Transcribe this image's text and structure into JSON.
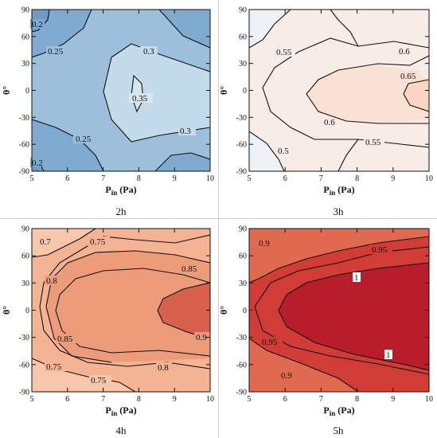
{
  "panels": [
    {
      "caption": "2h",
      "chart_data": {
        "type": "contour",
        "x": [
          5,
          6,
          7,
          8,
          9,
          10
        ],
        "y": [
          -90,
          -60,
          -30,
          0,
          30,
          60,
          90
        ],
        "xlabel_main": "P",
        "xlabel_sub": "in",
        "xlabel_unit": " (Pa)",
        "ylabel": "θ°",
        "xlim": [
          5,
          10
        ],
        "ylim": [
          -90,
          90
        ],
        "xticks": [
          "5",
          "6",
          "7",
          "8",
          "9",
          "10"
        ],
        "yticks": [
          "-90",
          "-60",
          "-30",
          "0",
          "30",
          "60",
          "90"
        ],
        "levels": [
          0.2,
          0.25,
          0.3,
          0.35
        ],
        "contour_labels": [
          "0.2",
          "0.25",
          "0.3",
          "0.35",
          "0.3",
          "0.25",
          "0.2"
        ],
        "color_low": "#7aa8cd",
        "color_high": "#d6e6f1"
      }
    },
    {
      "caption": "3h",
      "chart_data": {
        "type": "contour",
        "x": [
          5,
          6,
          7,
          8,
          9,
          10
        ],
        "y": [
          -90,
          -60,
          -30,
          0,
          30,
          60,
          90
        ],
        "xlabel_main": "P",
        "xlabel_sub": "in",
        "xlabel_unit": " (Pa)",
        "ylabel": "θ°",
        "xlim": [
          5,
          10
        ],
        "ylim": [
          -90,
          90
        ],
        "xticks": [
          "5",
          "6",
          "7",
          "8",
          "9",
          "10"
        ],
        "yticks": [
          "-90",
          "-60",
          "-30",
          "0",
          "30",
          "60",
          "90"
        ],
        "levels": [
          0.5,
          0.55,
          0.6,
          0.65
        ],
        "contour_labels": [
          "0.55",
          "0.6",
          "0.65",
          "0.6",
          "0.5",
          "0.55"
        ],
        "color_low": "#e9eef4",
        "color_high": "#f8dccd"
      }
    },
    {
      "caption": "4h",
      "chart_data": {
        "type": "contour",
        "x": [
          5,
          6,
          7,
          8,
          9,
          10
        ],
        "y": [
          -90,
          -60,
          -30,
          0,
          30,
          60,
          90
        ],
        "xlabel_main": "P",
        "xlabel_sub": "in",
        "xlabel_unit": " (Pa)",
        "ylabel": "θ°",
        "xlim": [
          5,
          10
        ],
        "ylim": [
          -90,
          90
        ],
        "xticks": [
          "5",
          "6",
          "7",
          "8",
          "9",
          "10"
        ],
        "yticks": [
          "-90",
          "-60",
          "-30",
          "0",
          "30",
          "60",
          "90"
        ],
        "levels": [
          0.7,
          0.75,
          0.8,
          0.85,
          0.9
        ],
        "contour_labels": [
          "0.7",
          "0.75",
          "0.8",
          "0.85",
          "0.85",
          "0.9",
          "0.75",
          "0.8",
          "0.75"
        ],
        "color_low": "#f4b99a",
        "color_high": "#d8584a"
      }
    },
    {
      "caption": "5h",
      "chart_data": {
        "type": "contour",
        "x": [
          5,
          6,
          7,
          8,
          9,
          10
        ],
        "y": [
          -90,
          -60,
          -30,
          0,
          30,
          60,
          90
        ],
        "xlabel_main": "P",
        "xlabel_sub": "in",
        "xlabel_unit": " (Pa)",
        "ylabel": "θ°",
        "xlim": [
          5,
          10
        ],
        "ylim": [
          -90,
          90
        ],
        "xticks": [
          "5",
          "6",
          "7",
          "8",
          "9",
          "10"
        ],
        "yticks": [
          "-90",
          "-60",
          "-30",
          "0",
          "30",
          "60",
          "90"
        ],
        "levels": [
          0.9,
          0.95,
          1.0
        ],
        "contour_labels": [
          "0.9",
          "0.95",
          "1",
          "0.95",
          "1",
          "0.9"
        ],
        "color_low": "#e07058",
        "color_high": "#b81d2b"
      }
    }
  ]
}
